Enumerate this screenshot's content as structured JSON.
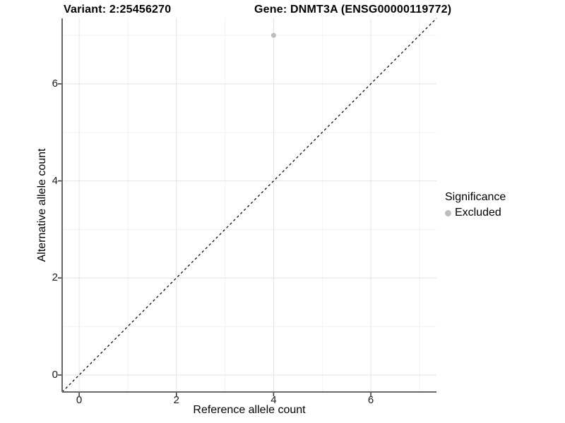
{
  "chart_data": {
    "type": "scatter",
    "title_left": "Variant: 2:25456270",
    "title_right": "Gene: DNMT3A (ENSG00000119772)",
    "xlabel": "Reference allele count",
    "ylabel": "Alternative allele count",
    "xlim": [
      -0.35,
      7.35
    ],
    "ylim": [
      -0.35,
      7.35
    ],
    "x_ticks": [
      0,
      2,
      4,
      6
    ],
    "y_ticks": [
      0,
      2,
      4,
      6
    ],
    "grid": {
      "major_x": [
        0,
        2,
        4,
        6
      ],
      "major_y": [
        0,
        2,
        4,
        6
      ],
      "minor_x": [
        1,
        3,
        5,
        7
      ],
      "minor_y": [
        1,
        3,
        5,
        7
      ]
    },
    "identity_line": {
      "from": [
        -0.35,
        -0.35
      ],
      "to": [
        7.35,
        7.35
      ],
      "style": "dashed",
      "color": "#000000"
    },
    "series": [
      {
        "name": "Excluded",
        "color": "#bdbdbd",
        "points": [
          {
            "x": 4,
            "y": 7
          }
        ]
      }
    ],
    "legend": {
      "title": "Significance",
      "position": "right",
      "items": [
        {
          "label": "Excluded",
          "color": "#bdbdbd"
        }
      ]
    },
    "style": {
      "background": "#ffffff",
      "grid_major_color": "#e4e4e4",
      "grid_minor_color": "#f1f1f1",
      "axis_line_color": "#696969",
      "tick_color": "#333333",
      "point_radius": 3.5,
      "legend_dot_radius": 4.5
    }
  }
}
